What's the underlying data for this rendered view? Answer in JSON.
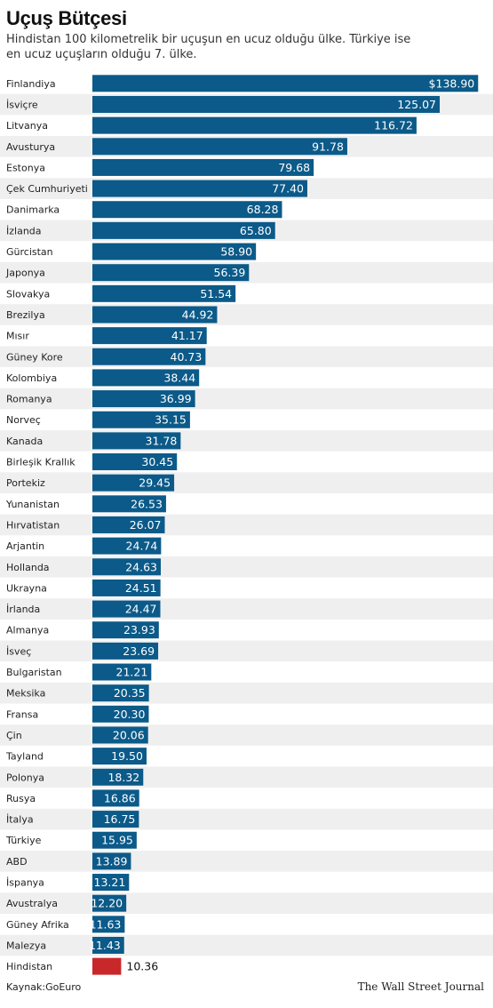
{
  "header": {
    "title": "Uçuş Bütçesi",
    "subtitle": "Hindistan 100 kilometrelik bir uçuşun en ucuz olduğu ülke. Türkiye ise en ucuz uçuşların olduğu 7. ülke."
  },
  "colors": {
    "bar": "#0b5a89",
    "highlight": "#c8282a",
    "row_alt": "#efefef"
  },
  "chart_data": {
    "type": "bar",
    "orientation": "horizontal",
    "categories": [
      "Finlandiya",
      "İsviçre",
      "Litvanya",
      "Avusturya",
      "Estonya",
      "Çek Cumhuriyeti",
      "Danimarka",
      "İzlanda",
      "Gürcistan",
      "Japonya",
      "Slovakya",
      "Brezilya",
      "Mısır",
      "Güney Kore",
      "Kolombiya",
      "Romanya",
      "Norveç",
      "Kanada",
      "Birleşik Krallık",
      "Portekiz",
      "Yunanistan",
      "Hırvatistan",
      "Arjantin",
      "Hollanda",
      "Ukrayna",
      "İrlanda",
      "Almanya",
      "İsveç",
      "Bulgaristan",
      "Meksika",
      "Fransa",
      "Çin",
      "Tayland",
      "Polonya",
      "Rusya",
      "İtalya",
      "Türkiye",
      "ABD",
      "İspanya",
      "Avustralya",
      "Güney Afrika",
      "Malezya",
      "Hindistan"
    ],
    "values": [
      138.9,
      125.07,
      116.72,
      91.78,
      79.68,
      77.4,
      68.28,
      65.8,
      58.9,
      56.39,
      51.54,
      44.92,
      41.17,
      40.73,
      38.44,
      36.99,
      35.15,
      31.78,
      30.45,
      29.45,
      26.53,
      26.07,
      24.74,
      24.63,
      24.51,
      24.47,
      23.93,
      23.69,
      21.21,
      20.35,
      20.3,
      20.06,
      19.5,
      18.32,
      16.86,
      16.75,
      15.95,
      13.89,
      13.21,
      12.2,
      11.63,
      11.43,
      10.36
    ],
    "value_labels": [
      "$138.90",
      "125.07",
      "116.72",
      "91.78",
      "79.68",
      "77.40",
      "68.28",
      "65.80",
      "58.90",
      "56.39",
      "51.54",
      "44.92",
      "41.17",
      "40.73",
      "38.44",
      "36.99",
      "35.15",
      "31.78",
      "30.45",
      "29.45",
      "26.53",
      "26.07",
      "24.74",
      "24.63",
      "24.51",
      "24.47",
      "23.93",
      "23.69",
      "21.21",
      "20.35",
      "20.30",
      "20.06",
      "19.50",
      "18.32",
      "16.86",
      "16.75",
      "15.95",
      "13.89",
      "13.21",
      "12.20",
      "11.63",
      "11.43",
      "10.36"
    ],
    "highlight_category": "Hindistan",
    "xlim": [
      0,
      140
    ],
    "grid": false,
    "title": "Uçuş Bütçesi",
    "xlabel": "",
    "ylabel": ""
  },
  "footer": {
    "source_label": "Kaynak:",
    "source_name": "GoEuro",
    "credit": "The Wall Street Journal"
  }
}
